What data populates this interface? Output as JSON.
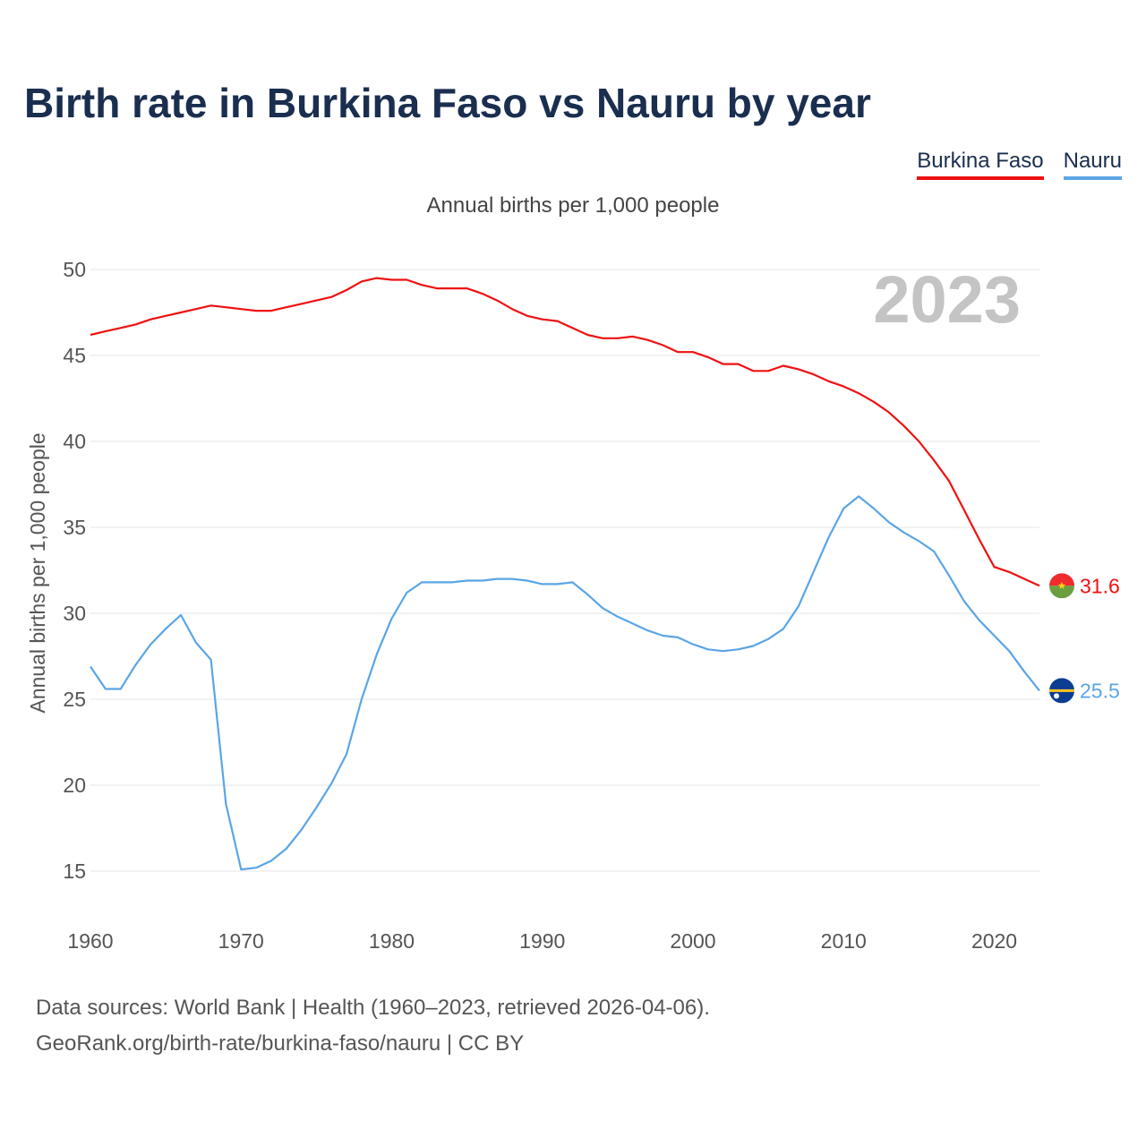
{
  "title": "Birth rate in Burkina Faso vs Nauru by year",
  "subtitle": "Annual births per 1,000 people",
  "watermark_year": "2023",
  "footer": {
    "line1": "Data sources: World Bank | Health (1960–2023, retrieved 2026-04-06).",
    "line2": "GeoRank.org/birth-rate/burkina-faso/nauru | CC BY"
  },
  "chart_data": {
    "type": "line",
    "title": "Birth rate in Burkina Faso vs Nauru by year",
    "xlabel": "",
    "ylabel": "Annual births per 1,000 people",
    "xlim": [
      1960,
      2023
    ],
    "ylim": [
      12.5,
      52
    ],
    "grid": true,
    "x_ticks": [
      1960,
      1970,
      1980,
      1990,
      2000,
      2010,
      2020
    ],
    "y_ticks": [
      15,
      20,
      25,
      30,
      35,
      40,
      45,
      50
    ],
    "legend_position": "top-right",
    "x": [
      1960,
      1961,
      1962,
      1963,
      1964,
      1965,
      1966,
      1967,
      1968,
      1969,
      1970,
      1971,
      1972,
      1973,
      1974,
      1975,
      1976,
      1977,
      1978,
      1979,
      1980,
      1981,
      1982,
      1983,
      1984,
      1985,
      1986,
      1987,
      1988,
      1989,
      1990,
      1991,
      1992,
      1993,
      1994,
      1995,
      1996,
      1997,
      1998,
      1999,
      2000,
      2001,
      2002,
      2003,
      2004,
      2005,
      2006,
      2007,
      2008,
      2009,
      2010,
      2011,
      2012,
      2013,
      2014,
      2015,
      2016,
      2017,
      2018,
      2019,
      2020,
      2021,
      2022,
      2023
    ],
    "series": [
      {
        "name": "Burkina Faso",
        "color": "#ee1111",
        "end_label": "31.6",
        "values": [
          46.2,
          46.4,
          46.6,
          46.8,
          47.1,
          47.3,
          47.5,
          47.7,
          47.9,
          47.8,
          47.7,
          47.6,
          47.6,
          47.8,
          48.0,
          48.2,
          48.4,
          48.8,
          49.3,
          49.5,
          49.4,
          49.4,
          49.1,
          48.9,
          48.9,
          48.9,
          48.6,
          48.2,
          47.7,
          47.3,
          47.1,
          47.0,
          46.6,
          46.2,
          46.0,
          46.0,
          46.1,
          45.9,
          45.6,
          45.2,
          45.2,
          44.9,
          44.5,
          44.5,
          44.1,
          44.1,
          44.4,
          44.2,
          43.9,
          43.5,
          43.2,
          42.8,
          42.3,
          41.7,
          40.9,
          40.0,
          38.9,
          37.7,
          36.0,
          34.3,
          32.7,
          32.4,
          32.0,
          31.6
        ]
      },
      {
        "name": "Nauru",
        "color": "#5aa5e6",
        "end_label": "25.5",
        "values": [
          26.9,
          25.6,
          25.6,
          27.0,
          28.2,
          29.1,
          29.9,
          28.3,
          27.3,
          18.9,
          15.1,
          15.2,
          15.6,
          16.3,
          17.4,
          18.7,
          20.1,
          21.8,
          25.0,
          27.6,
          29.7,
          31.2,
          31.8,
          31.8,
          31.8,
          31.9,
          31.9,
          32.0,
          32.0,
          31.9,
          31.7,
          31.7,
          31.8,
          31.1,
          30.3,
          29.8,
          29.4,
          29.0,
          28.7,
          28.6,
          28.2,
          27.9,
          27.8,
          27.9,
          28.1,
          28.5,
          29.1,
          30.4,
          32.4,
          34.4,
          36.1,
          36.8,
          36.1,
          35.3,
          34.7,
          34.2,
          33.6,
          32.2,
          30.7,
          29.6,
          28.7,
          27.8,
          26.6,
          25.5
        ]
      }
    ]
  }
}
